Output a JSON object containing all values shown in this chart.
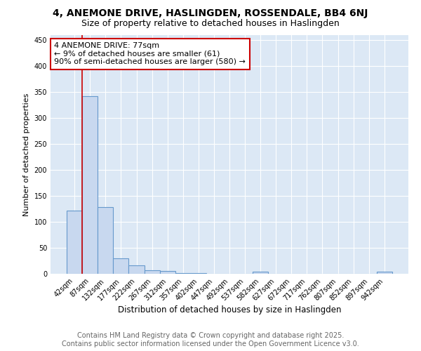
{
  "title1": "4, ANEMONE DRIVE, HASLINGDEN, ROSSENDALE, BB4 6NJ",
  "title2": "Size of property relative to detached houses in Haslingden",
  "xlabel": "Distribution of detached houses by size in Haslingden",
  "ylabel": "Number of detached properties",
  "annotation_title": "4 ANEMONE DRIVE: 77sqm",
  "annotation_line2": "← 9% of detached houses are smaller (61)",
  "annotation_line3": "90% of semi-detached houses are larger (580) →",
  "footer1": "Contains HM Land Registry data © Crown copyright and database right 2025.",
  "footer2": "Contains public sector information licensed under the Open Government Licence v3.0.",
  "categories": [
    "42sqm",
    "87sqm",
    "132sqm",
    "177sqm",
    "222sqm",
    "267sqm",
    "312sqm",
    "357sqm",
    "402sqm",
    "447sqm",
    "492sqm",
    "537sqm",
    "582sqm",
    "627sqm",
    "672sqm",
    "717sqm",
    "762sqm",
    "807sqm",
    "852sqm",
    "897sqm",
    "942sqm"
  ],
  "values": [
    122,
    342,
    128,
    30,
    16,
    7,
    5,
    2,
    2,
    0,
    0,
    0,
    4,
    0,
    0,
    0,
    0,
    0,
    0,
    0,
    4
  ],
  "bar_color": "#c8d8ef",
  "bar_edge_color": "#6699cc",
  "bg_color": "#ffffff",
  "plot_bg_color": "#dce8f5",
  "ylim": [
    0,
    460
  ],
  "yticks": [
    0,
    50,
    100,
    150,
    200,
    250,
    300,
    350,
    400,
    450
  ],
  "title1_fontsize": 10,
  "title2_fontsize": 9,
  "annotation_fontsize": 8,
  "footer_fontsize": 7,
  "grid_color": "#ffffff",
  "annotation_box_color": "#cc0000",
  "redline_x": 0.5
}
